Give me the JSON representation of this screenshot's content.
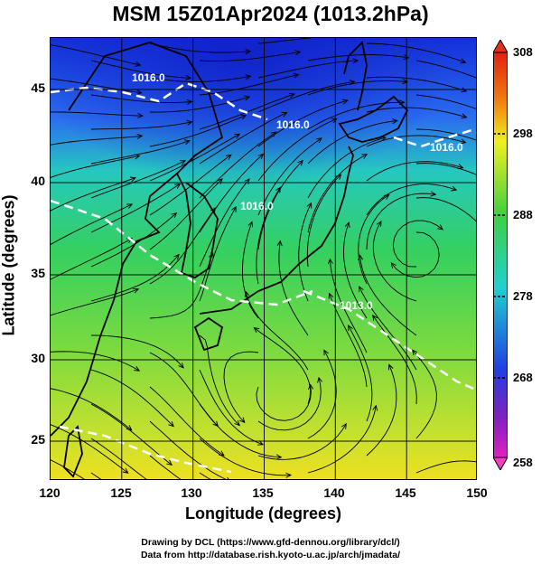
{
  "title": "MSM 15Z01Apr2024 (1013.2hPa)",
  "axes": {
    "xlabel": "Longitude (degrees)",
    "ylabel": "Latitude  (degrees)",
    "xticks": [
      "120",
      "125",
      "130",
      "135",
      "140",
      "145",
      "150"
    ],
    "yticks": [
      "45",
      "40",
      "35",
      "30",
      "25"
    ],
    "xlim": [
      120,
      150
    ],
    "ylim": [
      22.5,
      47.7
    ]
  },
  "colorbar": {
    "ticks": [
      "308",
      "298",
      "288",
      "278",
      "268",
      "258"
    ],
    "range": [
      258,
      308
    ]
  },
  "contour_labels": [
    "1016.0",
    "1016.0",
    "1016.0",
    "1013.0",
    "1016.0"
  ],
  "credits": {
    "line1": "Drawing by DCL (https://www.gfd-dennou.org/library/dcl/)",
    "line2": "Data from http://database.rish.kyoto-u.ac.jp/arch/jmadata/"
  },
  "colors": {
    "cold": "#2030d0",
    "mid": "#30d070",
    "warm": "#e0e020",
    "contour": "#ffffff",
    "coast": "#000000"
  }
}
